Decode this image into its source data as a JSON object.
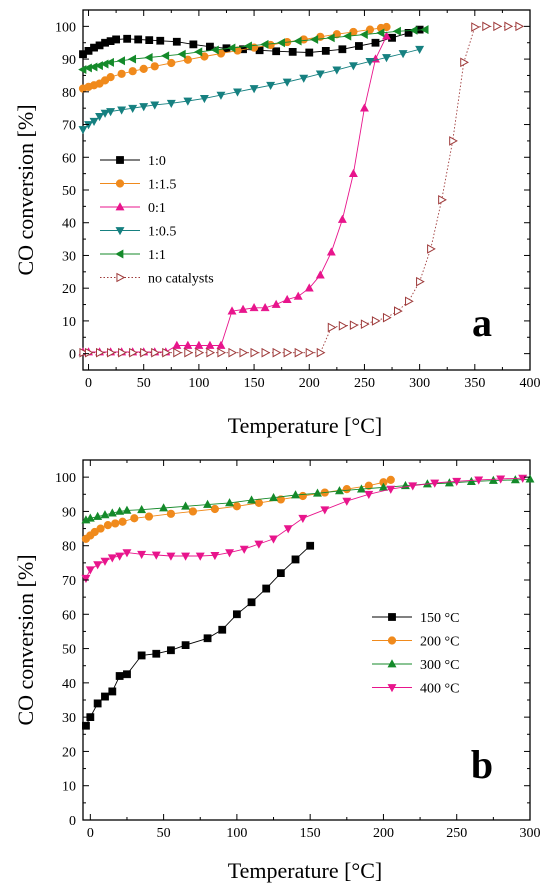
{
  "chart_data": [
    {
      "panel": "a",
      "type": "line",
      "xlabel": "Temperature [°C]",
      "ylabel": "CO conversion [%]",
      "xlim": [
        -5,
        400
      ],
      "ylim": [
        -5,
        105
      ],
      "xticks": [
        0,
        50,
        100,
        150,
        200,
        250,
        300,
        350,
        400
      ],
      "yticks": [
        0,
        10,
        20,
        30,
        40,
        50,
        60,
        70,
        80,
        90,
        100
      ],
      "legend_position": "left-middle",
      "series": [
        {
          "name": "1:0",
          "color": "#000000",
          "marker": "square",
          "line": "solid",
          "x": [
            -5,
            0,
            5,
            10,
            15,
            20,
            25,
            35,
            45,
            55,
            65,
            80,
            95,
            110,
            125,
            140,
            155,
            170,
            185,
            200,
            215,
            230,
            245,
            260,
            275,
            290,
            300
          ],
          "y": [
            91.5,
            92.5,
            93.5,
            94.2,
            95,
            95.5,
            96,
            96.2,
            96,
            95.8,
            95.6,
            95.3,
            94.5,
            93.8,
            93.3,
            93,
            92.7,
            92.4,
            92.2,
            92,
            92.5,
            93,
            94,
            95,
            96.5,
            98,
            99
          ]
        },
        {
          "name": "1:1.5",
          "color": "#f08a1c",
          "marker": "circle",
          "line": "solid",
          "x": [
            -5,
            0,
            5,
            10,
            15,
            20,
            30,
            40,
            50,
            60,
            75,
            90,
            105,
            120,
            135,
            150,
            165,
            180,
            195,
            210,
            225,
            240,
            255,
            265,
            270
          ],
          "y": [
            81,
            81.5,
            82,
            82.5,
            83.5,
            84.5,
            85.5,
            86.3,
            87,
            87.8,
            88.8,
            89.8,
            90.8,
            91.7,
            92.6,
            93.5,
            94.3,
            95.2,
            96,
            96.8,
            97.6,
            98.3,
            99,
            99.5,
            99.8
          ]
        },
        {
          "name": "0:1",
          "color": "#e8158c",
          "marker": "triangle-up",
          "line": "solid",
          "x": [
            -5,
            0,
            10,
            20,
            30,
            40,
            50,
            60,
            70,
            80,
            90,
            100,
            110,
            120,
            130,
            140,
            150,
            160,
            170,
            180,
            190,
            200,
            210,
            220,
            230,
            240,
            250,
            260,
            270
          ],
          "y": [
            0.5,
            0.5,
            0.5,
            0.5,
            0.5,
            0.5,
            0.5,
            0.5,
            0.5,
            2.5,
            2.5,
            2.5,
            2.5,
            2.5,
            13,
            13.5,
            14,
            14,
            15,
            16.5,
            17.5,
            20,
            24,
            31,
            41,
            55,
            75,
            90,
            97
          ]
        },
        {
          "name": "1:0.5",
          "color": "#168080",
          "marker": "triangle-down",
          "line": "solid",
          "x": [
            -5,
            0,
            5,
            10,
            15,
            20,
            30,
            40,
            50,
            60,
            75,
            90,
            105,
            120,
            135,
            150,
            165,
            180,
            195,
            210,
            225,
            240,
            255,
            270,
            285,
            300
          ],
          "y": [
            68.5,
            70,
            71,
            72.5,
            73.5,
            74,
            74.5,
            75,
            75.5,
            76,
            76.5,
            77.2,
            78,
            79,
            80,
            81,
            82,
            83,
            84.2,
            85.5,
            86.7,
            88,
            89.3,
            90.5,
            91.7,
            93
          ]
        },
        {
          "name": "1:1",
          "color": "#148a2a",
          "marker": "triangle-left",
          "line": "solid",
          "x": [
            -5,
            0,
            5,
            10,
            15,
            20,
            30,
            40,
            55,
            70,
            85,
            100,
            115,
            130,
            145,
            160,
            175,
            190,
            205,
            220,
            235,
            250,
            265,
            280,
            295,
            305
          ],
          "y": [
            86.8,
            87.3,
            87.6,
            88,
            88.5,
            89,
            89.5,
            90,
            90.5,
            91,
            91.5,
            92.2,
            92.8,
            93.4,
            94,
            94.5,
            95,
            95.5,
            96,
            96.5,
            97,
            97.5,
            98,
            98.5,
            98.8,
            99
          ]
        },
        {
          "name": "no catalysts",
          "color": "#9e3a3a",
          "marker": "triangle-right-open",
          "line": "dotted",
          "x": [
            -5,
            0,
            10,
            20,
            30,
            40,
            50,
            60,
            70,
            80,
            90,
            100,
            110,
            120,
            130,
            140,
            150,
            160,
            170,
            180,
            190,
            200,
            210,
            220,
            230,
            240,
            250,
            260,
            270,
            280,
            290,
            300,
            310,
            320,
            330,
            340,
            350,
            360,
            370,
            380,
            390
          ],
          "y": [
            0.3,
            0.3,
            0.3,
            0.3,
            0.3,
            0.3,
            0.3,
            0.3,
            0.3,
            0.3,
            0.3,
            0.3,
            0.3,
            0.3,
            0.3,
            0.3,
            0.3,
            0.3,
            0.3,
            0.3,
            0.3,
            0.3,
            0.3,
            8,
            8.5,
            8.7,
            9,
            10,
            11,
            13,
            16,
            22,
            32,
            47,
            65,
            89,
            99.8,
            100,
            100,
            100,
            100
          ]
        }
      ]
    },
    {
      "panel": "b",
      "type": "line",
      "xlabel": "Temperature [°C]",
      "ylabel": "CO conversion [%]",
      "xlim": [
        -5,
        300
      ],
      "ylim": [
        0,
        105
      ],
      "xticks": [
        0,
        50,
        100,
        150,
        200,
        250,
        300
      ],
      "yticks": [
        0,
        10,
        20,
        30,
        40,
        50,
        60,
        70,
        80,
        90,
        100
      ],
      "legend_position": "right-middle",
      "series": [
        {
          "name": "150 °C",
          "color": "#000000",
          "marker": "square",
          "line": "solid",
          "x": [
            -3,
            0,
            5,
            10,
            15,
            20,
            25,
            35,
            45,
            55,
            65,
            80,
            90,
            100,
            110,
            120,
            130,
            140,
            150
          ],
          "y": [
            27.5,
            30,
            34,
            36,
            37.5,
            42,
            42.5,
            48,
            48.5,
            49.5,
            51,
            53,
            55.5,
            60,
            63.5,
            67.5,
            72,
            76,
            80
          ]
        },
        {
          "name": "200 °C",
          "color": "#f08a1c",
          "marker": "circle",
          "line": "solid",
          "x": [
            -3,
            0,
            3,
            7,
            12,
            17,
            22,
            30,
            40,
            55,
            70,
            85,
            100,
            115,
            130,
            145,
            160,
            175,
            190,
            200,
            205
          ],
          "y": [
            82,
            83,
            84,
            85,
            86,
            86.5,
            87,
            88,
            88.5,
            89.3,
            90,
            90.7,
            91.5,
            92.5,
            93.5,
            94.5,
            95.5,
            96.5,
            97.5,
            98.5,
            99.2
          ]
        },
        {
          "name": "300 °C",
          "color": "#148a2a",
          "marker": "triangle-up",
          "line": "solid",
          "x": [
            -3,
            0,
            5,
            10,
            15,
            20,
            25,
            35,
            50,
            65,
            80,
            95,
            110,
            125,
            140,
            155,
            170,
            185,
            200,
            215,
            230,
            245,
            260,
            275,
            290,
            300
          ],
          "y": [
            87.5,
            88,
            88.5,
            89,
            89.5,
            90,
            90.3,
            90.5,
            91,
            91.5,
            92,
            92.5,
            93.3,
            94,
            94.8,
            95.3,
            96,
            96.5,
            97,
            97.5,
            98,
            98.3,
            98.7,
            99,
            99.2,
            99.4
          ]
        },
        {
          "name": "400 °C",
          "color": "#e8158c",
          "marker": "triangle-down",
          "line": "solid",
          "x": [
            -3,
            0,
            5,
            10,
            15,
            20,
            25,
            35,
            45,
            55,
            65,
            75,
            85,
            95,
            105,
            115,
            125,
            135,
            145,
            160,
            175,
            190,
            205,
            220,
            235,
            250,
            265,
            280,
            295
          ],
          "y": [
            70.5,
            73,
            74.5,
            75.5,
            76.5,
            77,
            78,
            77.5,
            77.3,
            77,
            77,
            77,
            77.2,
            78,
            79,
            80.5,
            82,
            85,
            88,
            90.5,
            93,
            95,
            96.5,
            97.5,
            98.3,
            98.8,
            99.2,
            99.5,
            99.7
          ]
        }
      ]
    }
  ],
  "panels": [
    {
      "letter": "a",
      "ylabel": "CO conversion [%]",
      "xlabel": "Temperature [°C]",
      "xtick_labels": [
        "0",
        "50",
        "100",
        "150",
        "200",
        "250",
        "300",
        "350",
        "400"
      ],
      "ytick_labels": [
        "0",
        "10",
        "20",
        "30",
        "40",
        "50",
        "60",
        "70",
        "80",
        "90",
        "100"
      ],
      "legend": [
        "1:0",
        "1:1.5",
        "0:1",
        "1:0.5",
        "1:1",
        "no catalysts"
      ]
    },
    {
      "letter": "b",
      "ylabel": "CO conversion [%]",
      "xlabel": "Temperature [°C]",
      "xtick_labels": [
        "0",
        "50",
        "100",
        "150",
        "200",
        "250",
        "300"
      ],
      "ytick_labels": [
        "0",
        "10",
        "20",
        "30",
        "40",
        "50",
        "60",
        "70",
        "80",
        "90",
        "100"
      ],
      "legend": [
        "150 °C",
        "200 °C",
        "300 °C",
        "400 °C"
      ]
    }
  ]
}
